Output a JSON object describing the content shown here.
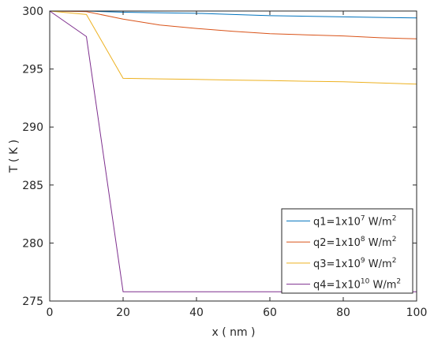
{
  "chart_data": {
    "type": "line",
    "title": "",
    "xlabel": "x ( nm )",
    "ylabel": "T ( K )",
    "xlim": [
      0,
      100
    ],
    "ylim": [
      275,
      300
    ],
    "xticks": [
      0,
      20,
      40,
      60,
      80,
      100
    ],
    "yticks": [
      275,
      280,
      285,
      290,
      295,
      300
    ],
    "grid": false,
    "legend_position": "bottom-right",
    "series": [
      {
        "name": "q1=1x10^7 W/m^2",
        "label_base": "q1=1x10",
        "label_exp": "7",
        "label_unit": " W/m",
        "label_unit_exp": "2",
        "color": "#0072BD",
        "x": [
          0,
          10,
          20,
          30,
          40,
          50,
          60,
          70,
          80,
          90,
          100
        ],
        "y": [
          300,
          300,
          299.9,
          299.85,
          299.8,
          299.7,
          299.6,
          299.55,
          299.5,
          299.45,
          299.4
        ]
      },
      {
        "name": "q2=1x10^8 W/m^2",
        "label_base": "q2=1x10",
        "label_exp": "8",
        "label_unit": " W/m",
        "label_unit_exp": "2",
        "color": "#D95319",
        "x": [
          0,
          10,
          20,
          30,
          40,
          50,
          60,
          70,
          80,
          90,
          100
        ],
        "y": [
          300,
          299.95,
          299.3,
          298.8,
          298.5,
          298.25,
          298.05,
          297.95,
          297.85,
          297.7,
          297.6
        ]
      },
      {
        "name": "q3=1x10^9 W/m^2",
        "label_base": "q3=1x10",
        "label_exp": "9",
        "label_unit": " W/m",
        "label_unit_exp": "2",
        "color": "#EDB120",
        "x": [
          0,
          10,
          20,
          30,
          40,
          50,
          60,
          70,
          80,
          90,
          100
        ],
        "y": [
          300,
          299.7,
          294.2,
          294.15,
          294.1,
          294.05,
          294.0,
          293.95,
          293.9,
          293.8,
          293.7
        ]
      },
      {
        "name": "q4=1x10^10 W/m^2",
        "label_base": "q4=1x10",
        "label_exp": "10",
        "label_unit": " W/m",
        "label_unit_exp": "2",
        "color": "#7E2F8E",
        "x": [
          0,
          10,
          20,
          30,
          40,
          50,
          60,
          70,
          80,
          90,
          100
        ],
        "y": [
          300,
          297.8,
          275.8,
          275.8,
          275.8,
          275.8,
          275.8,
          275.8,
          275.8,
          275.8,
          275.8
        ]
      }
    ]
  }
}
